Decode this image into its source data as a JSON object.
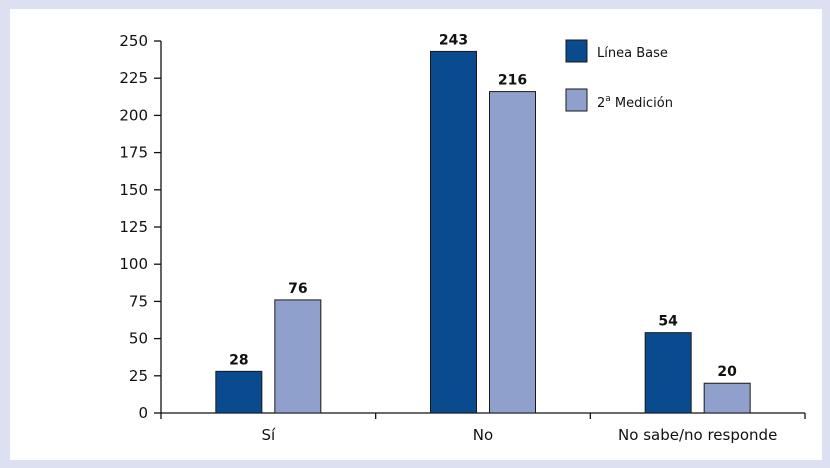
{
  "chart_data": {
    "type": "bar",
    "categories": [
      "Sí",
      "No",
      "No sabe/no responde"
    ],
    "series": [
      {
        "name": "Línea Base",
        "values": [
          28,
          243,
          54
        ],
        "color": "#0a4a8f"
      },
      {
        "name": "2ª Medición",
        "values": [
          76,
          216,
          20
        ],
        "color": "#8fa0cc"
      }
    ],
    "legend_labels": {
      "series_0": "Línea Base",
      "series_1_main": "2",
      "series_1_sup": "a",
      "series_1_rest": " Medición"
    },
    "ylim": [
      0,
      250
    ],
    "yticks": [
      0,
      25,
      50,
      75,
      100,
      125,
      150,
      175,
      200,
      225,
      250
    ],
    "ytick_labels": [
      "0",
      "25",
      "50",
      "75",
      "100",
      "125",
      "150",
      "175",
      "200",
      "225",
      "250"
    ],
    "xlabel": "",
    "ylabel": "",
    "grid": false,
    "legend_position": "top-right"
  }
}
